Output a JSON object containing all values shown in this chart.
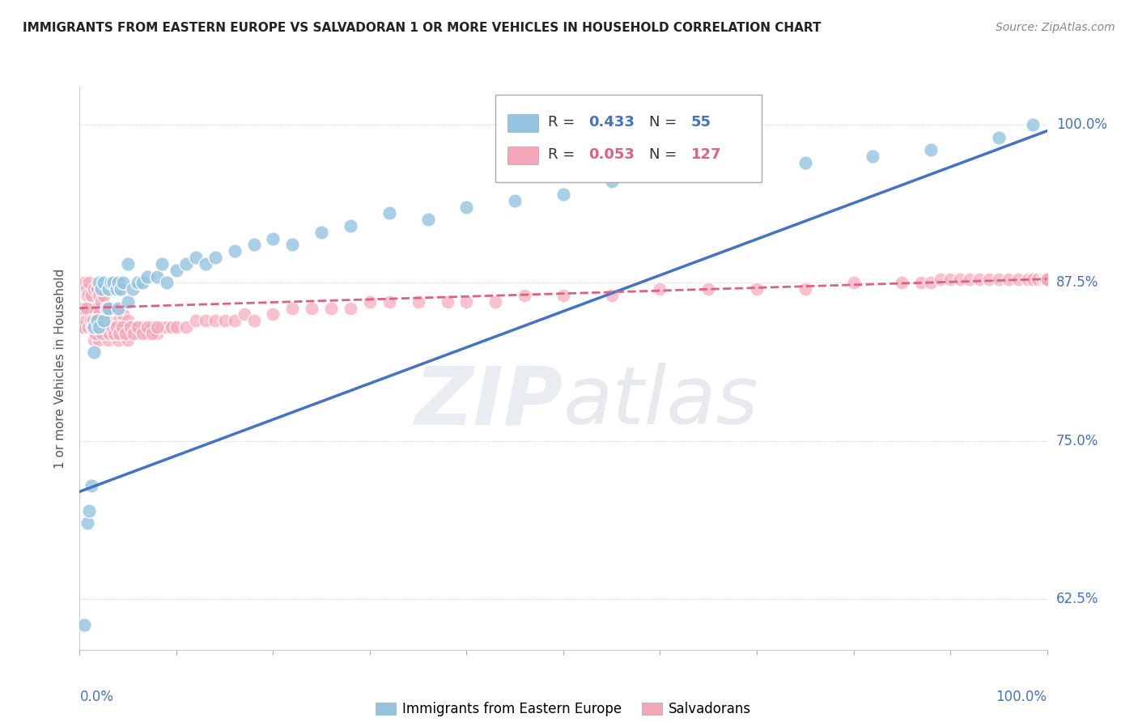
{
  "title": "IMMIGRANTS FROM EASTERN EUROPE VS SALVADORAN 1 OR MORE VEHICLES IN HOUSEHOLD CORRELATION CHART",
  "source": "Source: ZipAtlas.com",
  "ylabel": "1 or more Vehicles in Household",
  "legend_blue_label": "Immigrants from Eastern Europe",
  "legend_pink_label": "Salvadorans",
  "r_blue": 0.433,
  "n_blue": 55,
  "r_pink": 0.053,
  "n_pink": 127,
  "color_blue": "#94c4e0",
  "color_pink": "#f4a7b9",
  "trend_blue": "#4472c4",
  "trend_pink": "#e06080",
  "ytick_labels": [
    "62.5%",
    "75.0%",
    "87.5%",
    "100.0%"
  ],
  "ytick_values": [
    0.625,
    0.75,
    0.875,
    1.0
  ],
  "xlim": [
    0.0,
    1.0
  ],
  "ylim": [
    0.585,
    1.03
  ],
  "blue_x": [
    0.005,
    0.008,
    0.01,
    0.012,
    0.015,
    0.015,
    0.018,
    0.02,
    0.02,
    0.022,
    0.025,
    0.025,
    0.028,
    0.03,
    0.03,
    0.032,
    0.035,
    0.038,
    0.04,
    0.04,
    0.042,
    0.045,
    0.05,
    0.05,
    0.055,
    0.06,
    0.065,
    0.07,
    0.08,
    0.085,
    0.09,
    0.1,
    0.11,
    0.12,
    0.13,
    0.14,
    0.16,
    0.18,
    0.2,
    0.22,
    0.25,
    0.28,
    0.32,
    0.36,
    0.4,
    0.45,
    0.5,
    0.55,
    0.62,
    0.68,
    0.75,
    0.82,
    0.88,
    0.95,
    0.985
  ],
  "blue_y": [
    0.605,
    0.685,
    0.695,
    0.715,
    0.82,
    0.84,
    0.845,
    0.84,
    0.875,
    0.87,
    0.845,
    0.875,
    0.855,
    0.855,
    0.87,
    0.875,
    0.875,
    0.87,
    0.855,
    0.875,
    0.87,
    0.875,
    0.86,
    0.89,
    0.87,
    0.875,
    0.875,
    0.88,
    0.88,
    0.89,
    0.875,
    0.885,
    0.89,
    0.895,
    0.89,
    0.895,
    0.9,
    0.905,
    0.91,
    0.905,
    0.915,
    0.92,
    0.93,
    0.925,
    0.935,
    0.94,
    0.945,
    0.955,
    0.96,
    0.965,
    0.97,
    0.975,
    0.98,
    0.99,
    1.0
  ],
  "pink_x": [
    0.005,
    0.005,
    0.007,
    0.008,
    0.01,
    0.01,
    0.01,
    0.012,
    0.012,
    0.015,
    0.015,
    0.015,
    0.015,
    0.018,
    0.018,
    0.018,
    0.02,
    0.02,
    0.02,
    0.022,
    0.022,
    0.025,
    0.025,
    0.025,
    0.028,
    0.028,
    0.03,
    0.03,
    0.032,
    0.035,
    0.035,
    0.038,
    0.04,
    0.04,
    0.042,
    0.045,
    0.045,
    0.048,
    0.05,
    0.05,
    0.055,
    0.06,
    0.065,
    0.07,
    0.075,
    0.08,
    0.085,
    0.09,
    0.095,
    0.1,
    0.11,
    0.12,
    0.13,
    0.14,
    0.15,
    0.16,
    0.17,
    0.18,
    0.2,
    0.22,
    0.24,
    0.26,
    0.28,
    0.3,
    0.32,
    0.35,
    0.38,
    0.4,
    0.43,
    0.46,
    0.5,
    0.55,
    0.6,
    0.65,
    0.7,
    0.75,
    0.8,
    0.85,
    0.87,
    0.88,
    0.89,
    0.9,
    0.91,
    0.92,
    0.93,
    0.94,
    0.95,
    0.96,
    0.97,
    0.98,
    0.985,
    0.99,
    0.995,
    0.998,
    0.999,
    1.0,
    0.002,
    0.003,
    0.004,
    0.006,
    0.007,
    0.009,
    0.011,
    0.013,
    0.014,
    0.016,
    0.017,
    0.019,
    0.021,
    0.023,
    0.026,
    0.027,
    0.029,
    0.031,
    0.033,
    0.036,
    0.038,
    0.041,
    0.044,
    0.047,
    0.052,
    0.056,
    0.06,
    0.065,
    0.07,
    0.075,
    0.08
  ],
  "pink_y": [
    0.855,
    0.875,
    0.87,
    0.865,
    0.845,
    0.855,
    0.875,
    0.845,
    0.865,
    0.83,
    0.845,
    0.855,
    0.87,
    0.84,
    0.855,
    0.87,
    0.83,
    0.845,
    0.865,
    0.84,
    0.86,
    0.835,
    0.845,
    0.865,
    0.84,
    0.855,
    0.83,
    0.845,
    0.84,
    0.835,
    0.855,
    0.84,
    0.83,
    0.845,
    0.84,
    0.835,
    0.85,
    0.84,
    0.83,
    0.845,
    0.84,
    0.835,
    0.84,
    0.835,
    0.84,
    0.835,
    0.84,
    0.84,
    0.84,
    0.84,
    0.84,
    0.845,
    0.845,
    0.845,
    0.845,
    0.845,
    0.85,
    0.845,
    0.85,
    0.855,
    0.855,
    0.855,
    0.855,
    0.86,
    0.86,
    0.86,
    0.86,
    0.86,
    0.86,
    0.865,
    0.865,
    0.865,
    0.87,
    0.87,
    0.87,
    0.87,
    0.875,
    0.875,
    0.875,
    0.875,
    0.878,
    0.878,
    0.878,
    0.878,
    0.878,
    0.878,
    0.878,
    0.878,
    0.878,
    0.878,
    0.878,
    0.878,
    0.878,
    0.878,
    0.878,
    0.878,
    0.84,
    0.855,
    0.84,
    0.845,
    0.855,
    0.84,
    0.845,
    0.84,
    0.845,
    0.835,
    0.845,
    0.84,
    0.84,
    0.835,
    0.84,
    0.845,
    0.84,
    0.835,
    0.84,
    0.835,
    0.84,
    0.835,
    0.84,
    0.835,
    0.84,
    0.835,
    0.84,
    0.835,
    0.84,
    0.835,
    0.84
  ]
}
